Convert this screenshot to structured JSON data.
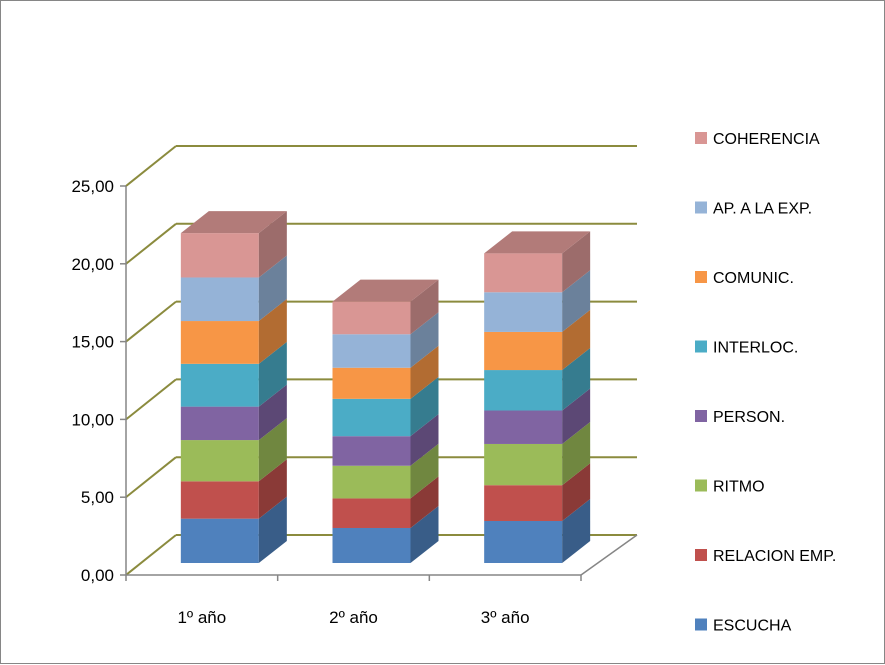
{
  "chart_data": {
    "type": "bar",
    "subtype": "stacked-3d",
    "title": "",
    "xlabel": "",
    "ylabel": "",
    "categories": [
      "1º año",
      "2º año",
      "3º año"
    ],
    "ylim": [
      0,
      25
    ],
    "yticks": [
      "0,00",
      "5,00",
      "10,00",
      "15,00",
      "20,00",
      "25,00"
    ],
    "ytick_values": [
      0,
      5,
      10,
      15,
      20,
      25
    ],
    "grid": true,
    "legend_position": "right",
    "series": [
      {
        "name": "ESCUCHA",
        "color": "#4F81BD",
        "values": [
          2.85,
          2.25,
          2.7
        ]
      },
      {
        "name": "RELACION EMP.",
        "color": "#C0504D",
        "values": [
          2.4,
          1.9,
          2.3
        ]
      },
      {
        "name": "RITMO",
        "color": "#9BBB59",
        "values": [
          2.65,
          2.1,
          2.65
        ]
      },
      {
        "name": "PERSON.",
        "color": "#8064A2",
        "values": [
          2.15,
          1.9,
          2.15
        ]
      },
      {
        "name": "INTERLOC.",
        "color": "#4BACC6",
        "values": [
          2.75,
          2.4,
          2.6
        ]
      },
      {
        "name": "COMUNIC.",
        "color": "#F79646",
        "values": [
          2.75,
          2.0,
          2.45
        ]
      },
      {
        "name": "AP. A LA EXP.",
        "color": "#95B3D7",
        "values": [
          2.8,
          2.15,
          2.55
        ]
      },
      {
        "name": "COHERENCIA",
        "color": "#D99694",
        "values": [
          2.85,
          2.1,
          2.5
        ]
      }
    ]
  }
}
